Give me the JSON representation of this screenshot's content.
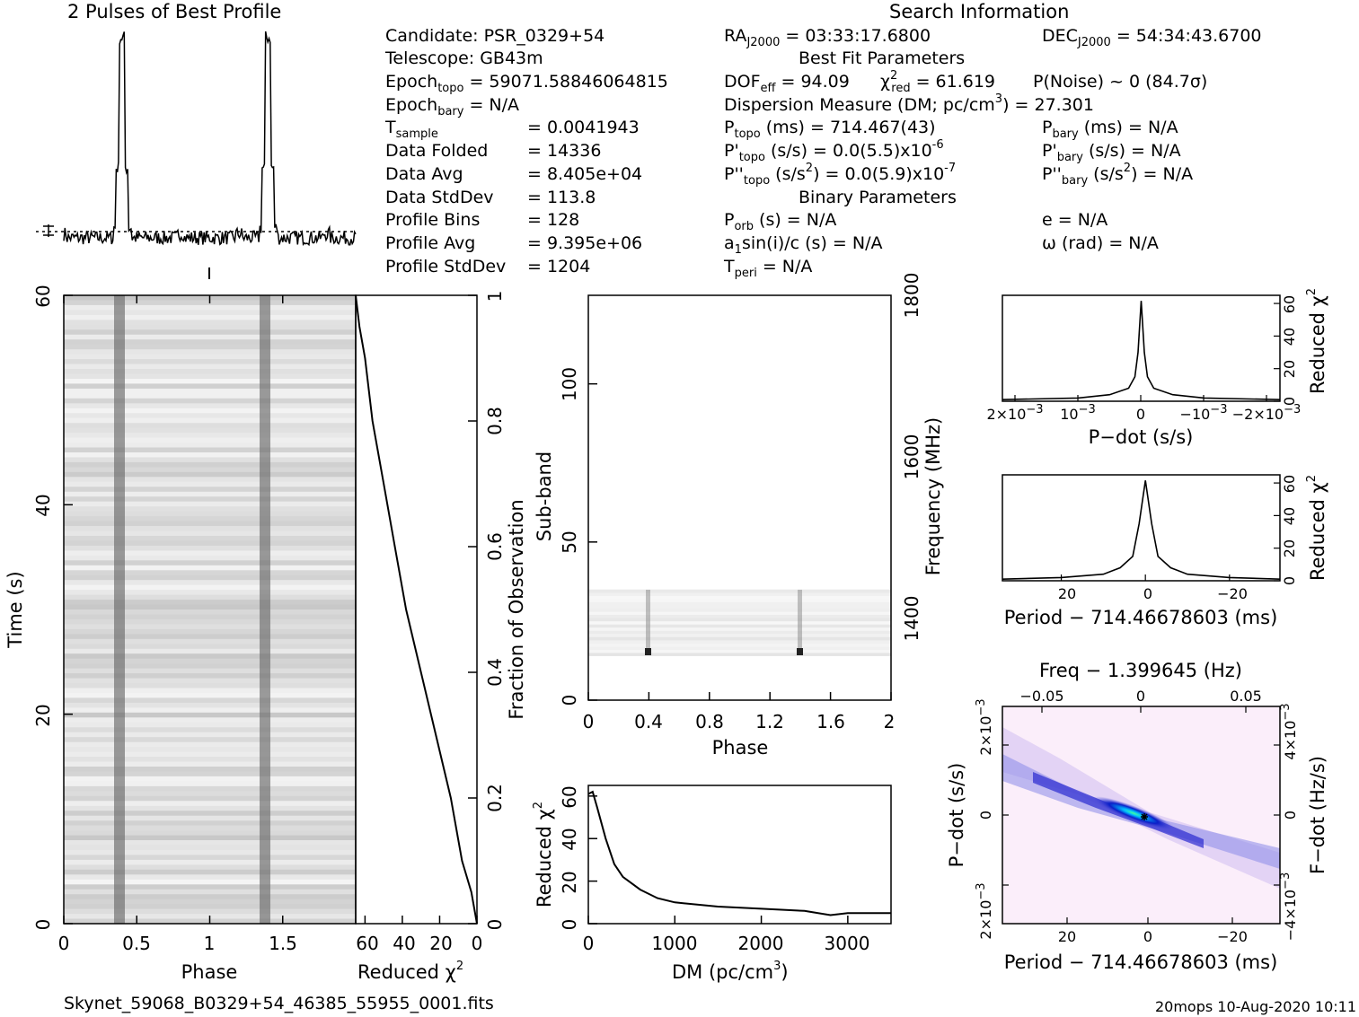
{
  "meta": {
    "candidate": "Candidate:  PSR_0329+54",
    "telescope": "Telescope:  GB43m",
    "epoch_topo_val": "= 59071.58846064815",
    "epoch_bary_val": "= N/A",
    "t_sample": "=  0.0041943",
    "data_folded": "=  14336",
    "data_avg": "=  8.405e+04",
    "data_stddev": "=  113.8",
    "profile_bins": "=  128",
    "profile_avg": "=  9.395e+06",
    "profile_stddev": "=  1204",
    "data_folded_label": "Data Folded",
    "data_avg_label": "Data Avg",
    "data_stddev_label": "Data StdDev",
    "profile_bins_label": "Profile Bins",
    "profile_avg_label": "Profile Avg",
    "profile_stddev_label": "Profile StdDev",
    "search_info_title": "Search Information",
    "ra": "= 03:33:17.6800",
    "dec": "= 54:34:43.6700",
    "best_fit_title": "Best Fit Parameters",
    "dof": "= 94.09",
    "chi2_red": "= 61.619",
    "p_noise": "P(Noise) ~ 0   (84.7σ)",
    "dm_line": "Dispersion Measure (DM; pc/cm",
    "dm_value": ") = 27.301",
    "p_topo": "(ms) =  714.467(43)",
    "p_bary": "(ms) = N/A",
    "pd_topo": "(s/s) = 0.0(5.5)x10",
    "pd_topo_exp": "-6",
    "pd_bary": "(s/s) = N/A",
    "pdd_topo": "(s/s",
    "pdd_topo_rest": ") = 0.0(5.9)x10",
    "pdd_topo_exp": "-7",
    "pdd_bary": ") = N/A",
    "binary_title": "Binary Parameters",
    "p_orb": "(s) = N/A",
    "e": "e = N/A",
    "a1sini": "sin(i)/c (s) = N/A",
    "omega": "ω (rad) = N/A",
    "t_peri": "= N/A"
  },
  "footer": {
    "filename": "Skynet_59068_B0329+54_46385_55955_0001.fits",
    "stamp": "20mops 10-Aug-2020 10:11"
  },
  "chart_data": [
    {
      "id": "profile",
      "type": "line",
      "title": "2 Pulses of Best Profile",
      "x": [
        0,
        0.2,
        0.36,
        0.38,
        0.4,
        0.42,
        0.44,
        0.6,
        0.8,
        1.0,
        1.2,
        1.36,
        1.38,
        1.4,
        1.42,
        1.44,
        1.6,
        1.8,
        2.0
      ],
      "y": [
        0.02,
        0.0,
        0.05,
        0.35,
        1.0,
        0.35,
        0.05,
        0.0,
        0.02,
        0.0,
        0.02,
        0.05,
        0.35,
        1.0,
        0.35,
        0.05,
        0.0,
        0.02,
        0.0
      ]
    },
    {
      "id": "time-phase",
      "type": "heatmap",
      "xlabel": "Phase",
      "ylabel": "Time (s)",
      "xlim": [
        0,
        2
      ],
      "ylim": [
        0,
        60
      ],
      "xticks": [
        "0",
        "0.5",
        "1",
        "1.5"
      ],
      "yticks": [
        "0",
        "20",
        "40",
        "60"
      ],
      "pulse_phase": [
        0.4,
        1.4
      ]
    },
    {
      "id": "time-chi2",
      "type": "line",
      "xlabel": "Reduced χ",
      "ylabel_right": "Fraction of Observation",
      "xlim": [
        65,
        0
      ],
      "ylim": [
        0,
        1
      ],
      "xticks": [
        "60",
        "40",
        "20",
        "0"
      ],
      "yticks": [
        "0",
        "0.2",
        "0.4",
        "0.6",
        "0.8",
        "1"
      ],
      "x": [
        0,
        3,
        8,
        14,
        22,
        30,
        38,
        44,
        50,
        56,
        60,
        63,
        65
      ],
      "y": [
        0,
        0.05,
        0.1,
        0.2,
        0.3,
        0.4,
        0.5,
        0.6,
        0.7,
        0.8,
        0.9,
        0.95,
        1.0
      ]
    },
    {
      "id": "subband-phase",
      "type": "heatmap",
      "xlabel": "Phase",
      "ylabel": "Sub-band",
      "ylabel_right": "Frequency (MHz)",
      "xlim": [
        0,
        2
      ],
      "ylim": [
        0,
        128
      ],
      "xticks": [
        "0",
        "0.4",
        "0.8",
        "1.2",
        "1.6",
        "2"
      ],
      "yticks": [
        "0",
        "50",
        "100"
      ],
      "rticks": [
        "1400",
        "1600",
        "1800"
      ],
      "active_subbands": [
        14,
        35
      ],
      "pulse_phase": [
        0.4,
        1.4
      ]
    },
    {
      "id": "dm-chi2",
      "type": "line",
      "xlabel": "DM (pc/cm",
      "ylabel": "Reduced χ",
      "xlim": [
        0,
        3500
      ],
      "ylim": [
        0,
        65
      ],
      "xticks": [
        "0",
        "1000",
        "2000",
        "3000"
      ],
      "yticks": [
        "0",
        "20",
        "40",
        "60"
      ],
      "x": [
        0,
        50,
        100,
        200,
        300,
        400,
        600,
        800,
        1000,
        1500,
        2000,
        2500,
        2800,
        3000,
        3500
      ],
      "y": [
        61,
        62,
        55,
        40,
        28,
        22,
        16,
        12,
        10,
        8,
        7,
        6,
        4,
        5,
        5
      ]
    },
    {
      "id": "pdot-chi2",
      "type": "line",
      "xlabel": "P−dot (s/s)",
      "ylabel_right": "Reduced χ",
      "xlim": [
        0.0022,
        -0.0022
      ],
      "ylim": [
        0,
        65
      ],
      "xticks": [
        "2×10",
        "10",
        "0",
        "−10",
        "−2×10"
      ],
      "yticks": [
        "0",
        "20",
        "40",
        "60"
      ],
      "x": [
        0.0022,
        0.001,
        0.0005,
        0.0002,
        0.0001,
        5e-05,
        0,
        -5e-05,
        -0.0001,
        -0.0002,
        -0.0005,
        -0.001,
        -0.0022
      ],
      "y": [
        1,
        2,
        4,
        8,
        15,
        30,
        61.6,
        30,
        15,
        8,
        4,
        2,
        1
      ]
    },
    {
      "id": "period-chi2",
      "type": "line",
      "xlabel": "Period − 714.46678603 (ms)",
      "ylabel_right": "Reduced χ",
      "xlim": [
        34,
        -32
      ],
      "ylim": [
        0,
        65
      ],
      "xticks": [
        "20",
        "0",
        "−20"
      ],
      "yticks": [
        "0",
        "20",
        "40",
        "60"
      ],
      "x": [
        34,
        20,
        10,
        6,
        3,
        1.5,
        0,
        -1.5,
        -3,
        -6,
        -10,
        -20,
        -32
      ],
      "y": [
        1,
        2,
        4,
        8,
        15,
        35,
        61.6,
        35,
        15,
        8,
        4,
        2,
        1
      ]
    },
    {
      "id": "period-pdot",
      "type": "heatmap",
      "title_top": "Freq − 1.399645 (Hz)",
      "xlabel": "Period − 714.46678603 (ms)",
      "ylabel": "P−dot (s/s)",
      "ylabel_right": "F−dot (Hz/s)",
      "xticks": [
        "20",
        "0",
        "−20"
      ],
      "top_ticks": [
        "−0.05",
        "0",
        "0.05"
      ],
      "peak": [
        0,
        0
      ]
    }
  ]
}
